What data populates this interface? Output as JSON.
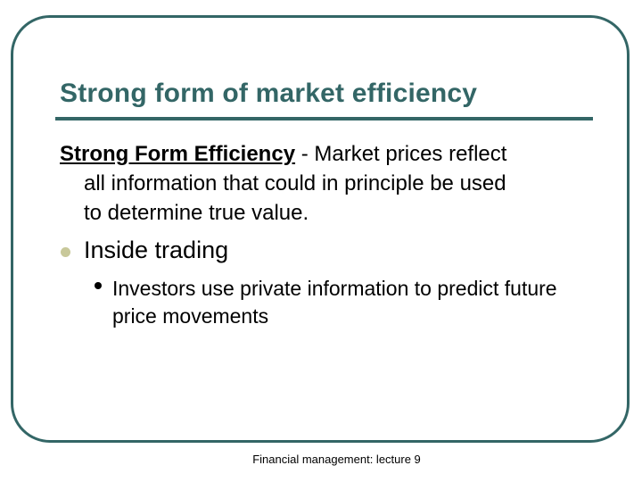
{
  "slide": {
    "title": "Strong form of market efficiency",
    "definition_term": "Strong Form Efficiency",
    "definition_line1": " - Market prices reflect",
    "definition_line2": "all information that could in principle be used",
    "definition_line3": "to determine true value.",
    "bullet_1": "Inside trading",
    "sub_bullet_1": "Investors use private information to predict future price movements",
    "footer": "Financial management: lecture 9"
  },
  "colors": {
    "accent": "#336666",
    "bullet": "#c8c89a"
  }
}
